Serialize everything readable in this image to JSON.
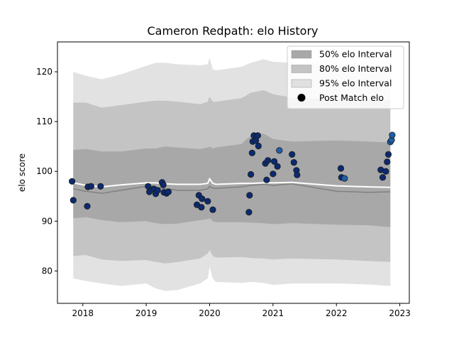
{
  "chart_data": {
    "type": "scatter",
    "title": "Cameron Redpath: elo History",
    "xlabel": "",
    "ylabel": "elo score",
    "xlim": [
      2017.6,
      2023.15
    ],
    "ylim": [
      73.5,
      126
    ],
    "xticks": [
      2018,
      2019,
      2020,
      2021,
      2022,
      2023
    ],
    "yticks": [
      80,
      90,
      100,
      110,
      120
    ],
    "grid": false,
    "legend_position": "top-right",
    "legend": [
      {
        "label": "50% elo Interval",
        "kind": "patch",
        "color": "#a8a8a8"
      },
      {
        "label": "80% elo Interval",
        "kind": "patch",
        "color": "#c4c4c4"
      },
      {
        "label": "95% elo Interval",
        "kind": "patch",
        "color": "#e0e0e0"
      },
      {
        "label": "Post Match elo",
        "kind": "marker",
        "color": "#000000"
      }
    ],
    "colors": {
      "band50": "#a8a8a8",
      "band80": "#c4c4c4",
      "band95": "#e2e2e2",
      "median_line": "#808080",
      "mean_line": "#ffffff",
      "point_dark": "#0c2a6e",
      "point_light": "#1f5ea8"
    },
    "bands": {
      "x": [
        2017.85,
        2018.05,
        2018.3,
        2018.6,
        2019.0,
        2019.15,
        2019.3,
        2019.5,
        2019.85,
        2019.97,
        2020.0,
        2020.05,
        2020.1,
        2020.5,
        2020.65,
        2020.85,
        2021.0,
        2021.3,
        2022.0,
        2022.5,
        2022.85
      ],
      "p95_upper": [
        120.0,
        119.2,
        118.5,
        119.5,
        121.2,
        121.8,
        121.8,
        121.5,
        121.3,
        121.5,
        122.8,
        120.5,
        120.3,
        121.0,
        121.8,
        122.5,
        122.0,
        121.8,
        121.5,
        121.2,
        121.0
      ],
      "p95_lower": [
        78.5,
        78.0,
        77.5,
        77.0,
        77.5,
        76.5,
        76.0,
        76.2,
        77.5,
        78.5,
        80.8,
        78.5,
        77.8,
        77.6,
        77.8,
        77.6,
        77.2,
        77.5,
        77.5,
        77.3,
        77.0
      ],
      "p80_upper": [
        113.8,
        113.8,
        112.8,
        113.3,
        114.0,
        114.2,
        114.2,
        114.0,
        113.5,
        114.0,
        115.0,
        114.0,
        114.0,
        114.7,
        115.8,
        116.3,
        115.5,
        114.8,
        114.5,
        114.3,
        114.3
      ],
      "p80_lower": [
        83.0,
        83.2,
        82.3,
        82.0,
        82.2,
        81.8,
        81.5,
        81.8,
        82.5,
        83.5,
        84.2,
        83.0,
        82.7,
        82.8,
        82.6,
        82.5,
        82.3,
        82.5,
        82.3,
        82.0,
        81.8
      ],
      "p50_upper": [
        104.3,
        104.5,
        104.0,
        104.0,
        104.6,
        104.6,
        105.0,
        104.8,
        104.5,
        104.8,
        105.0,
        104.6,
        104.8,
        105.5,
        107.2,
        107.6,
        106.5,
        106.0,
        106.2,
        106.0,
        105.8
      ],
      "p50_lower": [
        90.6,
        90.8,
        90.2,
        89.8,
        90.0,
        89.6,
        89.4,
        89.5,
        90.2,
        90.4,
        90.6,
        90.0,
        89.8,
        89.8,
        89.7,
        89.6,
        89.4,
        89.6,
        89.3,
        89.2,
        88.8
      ],
      "median": [
        96.5,
        96.0,
        95.6,
        96.2,
        97.0,
        96.8,
        96.5,
        96.2,
        96.2,
        96.5,
        97.0,
        96.6,
        96.6,
        96.9,
        97.2,
        97.4,
        97.2,
        97.5,
        96.0,
        95.8,
        95.9
      ],
      "mean": [
        97.7,
        97.2,
        96.9,
        97.3,
        97.7,
        97.7,
        97.5,
        97.4,
        97.4,
        97.6,
        98.5,
        97.6,
        97.4,
        97.6,
        97.6,
        97.7,
        97.7,
        97.8,
        97.1,
        96.9,
        96.8
      ]
    },
    "points": [
      {
        "x": 2017.83,
        "y": 98.0,
        "c": "dark"
      },
      {
        "x": 2017.85,
        "y": 94.2,
        "c": "dark"
      },
      {
        "x": 2018.07,
        "y": 93.0,
        "c": "dark"
      },
      {
        "x": 2018.08,
        "y": 96.9,
        "c": "dark"
      },
      {
        "x": 2018.13,
        "y": 97.0,
        "c": "dark"
      },
      {
        "x": 2018.28,
        "y": 97.0,
        "c": "dark"
      },
      {
        "x": 2019.03,
        "y": 97.0,
        "c": "dark"
      },
      {
        "x": 2019.05,
        "y": 95.9,
        "c": "dark"
      },
      {
        "x": 2019.12,
        "y": 96.5,
        "c": "dark"
      },
      {
        "x": 2019.15,
        "y": 95.5,
        "c": "dark"
      },
      {
        "x": 2019.18,
        "y": 96.2,
        "c": "dark"
      },
      {
        "x": 2019.25,
        "y": 97.8,
        "c": "dark"
      },
      {
        "x": 2019.27,
        "y": 97.3,
        "c": "dark"
      },
      {
        "x": 2019.28,
        "y": 95.8,
        "c": "dark"
      },
      {
        "x": 2019.32,
        "y": 95.6,
        "c": "dark"
      },
      {
        "x": 2019.35,
        "y": 95.9,
        "c": "dark"
      },
      {
        "x": 2019.8,
        "y": 93.3,
        "c": "dark"
      },
      {
        "x": 2019.83,
        "y": 95.2,
        "c": "dark"
      },
      {
        "x": 2019.87,
        "y": 92.8,
        "c": "dark"
      },
      {
        "x": 2019.88,
        "y": 94.5,
        "c": "dark"
      },
      {
        "x": 2019.97,
        "y": 94.0,
        "c": "dark"
      },
      {
        "x": 2020.05,
        "y": 92.3,
        "c": "dark"
      },
      {
        "x": 2020.62,
        "y": 91.8,
        "c": "dark"
      },
      {
        "x": 2020.63,
        "y": 95.2,
        "c": "dark"
      },
      {
        "x": 2020.65,
        "y": 99.4,
        "c": "dark"
      },
      {
        "x": 2020.67,
        "y": 103.7,
        "c": "dark"
      },
      {
        "x": 2020.68,
        "y": 106.0,
        "c": "dark"
      },
      {
        "x": 2020.7,
        "y": 107.2,
        "c": "dark"
      },
      {
        "x": 2020.73,
        "y": 106.2,
        "c": "dark"
      },
      {
        "x": 2020.76,
        "y": 107.2,
        "c": "dark"
      },
      {
        "x": 2020.77,
        "y": 105.1,
        "c": "dark"
      },
      {
        "x": 2020.88,
        "y": 101.6,
        "c": "dark"
      },
      {
        "x": 2020.9,
        "y": 98.3,
        "c": "dark"
      },
      {
        "x": 2020.92,
        "y": 102.2,
        "c": "dark"
      },
      {
        "x": 2021.0,
        "y": 99.5,
        "c": "dark"
      },
      {
        "x": 2021.02,
        "y": 102.0,
        "c": "dark"
      },
      {
        "x": 2021.07,
        "y": 101.0,
        "c": "dark"
      },
      {
        "x": 2021.1,
        "y": 104.2,
        "c": "light"
      },
      {
        "x": 2021.3,
        "y": 103.4,
        "c": "dark"
      },
      {
        "x": 2021.33,
        "y": 101.8,
        "c": "dark"
      },
      {
        "x": 2021.37,
        "y": 100.2,
        "c": "dark"
      },
      {
        "x": 2021.38,
        "y": 99.3,
        "c": "dark"
      },
      {
        "x": 2022.07,
        "y": 100.6,
        "c": "dark"
      },
      {
        "x": 2022.08,
        "y": 98.8,
        "c": "dark"
      },
      {
        "x": 2022.13,
        "y": 98.6,
        "c": "light"
      },
      {
        "x": 2022.7,
        "y": 100.3,
        "c": "dark"
      },
      {
        "x": 2022.73,
        "y": 98.8,
        "c": "dark"
      },
      {
        "x": 2022.78,
        "y": 100.0,
        "c": "dark"
      },
      {
        "x": 2022.8,
        "y": 101.9,
        "c": "dark"
      },
      {
        "x": 2022.82,
        "y": 103.4,
        "c": "dark"
      },
      {
        "x": 2022.85,
        "y": 105.9,
        "c": "light"
      },
      {
        "x": 2022.87,
        "y": 106.3,
        "c": "light"
      },
      {
        "x": 2022.88,
        "y": 107.3,
        "c": "light"
      }
    ]
  }
}
